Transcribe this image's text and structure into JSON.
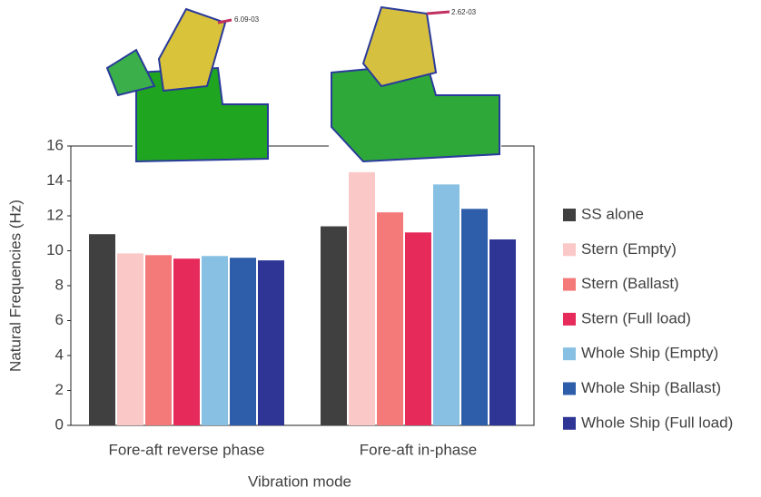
{
  "chart_data": {
    "type": "bar",
    "y_label": "Natural Frequencies (Hz)",
    "x_label": "Vibration mode",
    "categories": [
      "Fore-aft reverse phase",
      "Fore-aft in-phase"
    ],
    "series": [
      {
        "name": "SS alone",
        "color": "#404040",
        "values": [
          10.95,
          11.4
        ]
      },
      {
        "name": "Stern (Empty)",
        "color": "#fbc8c8",
        "values": [
          9.85,
          14.5
        ]
      },
      {
        "name": "Stern (Ballast)",
        "color": "#f47a7a",
        "values": [
          9.75,
          12.2
        ]
      },
      {
        "name": "Stern (Full load)",
        "color": "#e62a5a",
        "values": [
          9.55,
          11.05
        ]
      },
      {
        "name": "Whole Ship (Empty)",
        "color": "#87c0e2",
        "values": [
          9.7,
          13.8
        ]
      },
      {
        "name": "Whole Ship (Ballast)",
        "color": "#2e5eaa",
        "values": [
          9.6,
          12.4
        ]
      },
      {
        "name": "Whole Ship (Full load)",
        "color": "#2e3595",
        "values": [
          9.45,
          10.65
        ]
      }
    ],
    "ylim": [
      0,
      16
    ],
    "yticks": [
      0,
      2,
      4,
      6,
      8,
      10,
      12,
      14,
      16
    ],
    "grid": false,
    "legend": "right",
    "annotations": [
      "6.09-03",
      "2.62-03"
    ]
  }
}
